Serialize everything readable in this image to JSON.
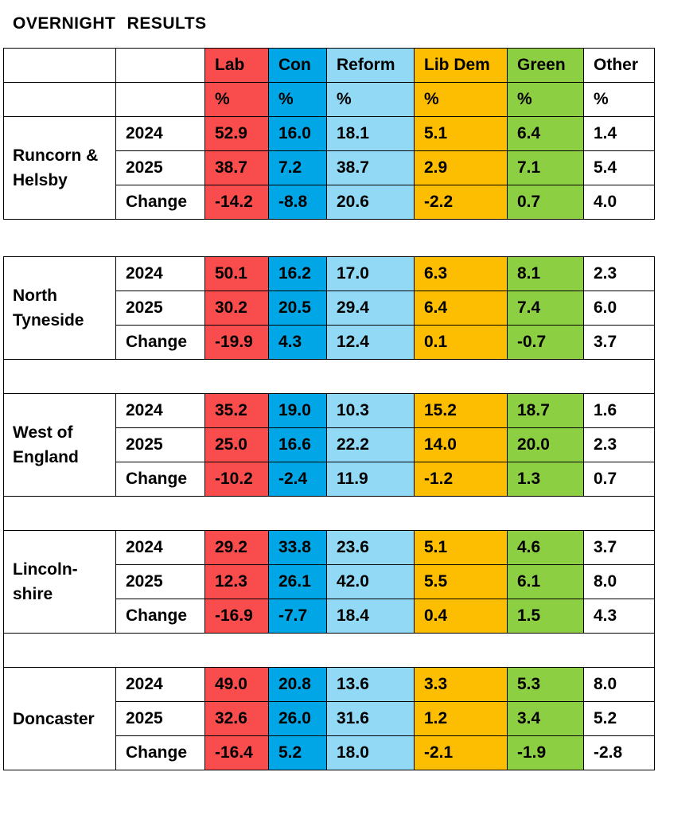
{
  "title": "OVERNIGHT  RESULTS",
  "parties": [
    {
      "name": "Lab",
      "unit": "%",
      "color": "#f94d4d"
    },
    {
      "name": "Con",
      "unit": "%",
      "color": "#00a6e6"
    },
    {
      "name": "Reform",
      "unit": "%",
      "color": "#91d9f5"
    },
    {
      "name": "Lib Dem",
      "unit": "%",
      "color": "#fdbd00"
    },
    {
      "name": "Green",
      "unit": "%",
      "color": "#8dcf43"
    },
    {
      "name": "Other",
      "unit": "%",
      "color": "#ffffff"
    }
  ],
  "regions": [
    {
      "name": "Runcorn & Helsby",
      "rows": [
        {
          "label": "2024",
          "values": [
            "52.9",
            "16.0",
            "18.1",
            "5.1",
            "6.4",
            "1.4"
          ]
        },
        {
          "label": "2025",
          "values": [
            "38.7",
            "7.2",
            "38.7",
            "2.9",
            "7.1",
            "5.4"
          ]
        },
        {
          "label": "Change",
          "values": [
            "-14.2",
            "-8.8",
            "20.6",
            "-2.2",
            "0.7",
            "4.0"
          ]
        }
      ]
    },
    {
      "name": "North Tyneside",
      "rows": [
        {
          "label": "2024",
          "values": [
            "50.1",
            "16.2",
            "17.0",
            "6.3",
            "8.1",
            "2.3"
          ]
        },
        {
          "label": "2025",
          "values": [
            "30.2",
            "20.5",
            "29.4",
            "6.4",
            "7.4",
            "6.0"
          ]
        },
        {
          "label": "Change",
          "values": [
            "-19.9",
            "4.3",
            "12.4",
            "0.1",
            "-0.7",
            "3.7"
          ]
        }
      ]
    },
    {
      "name": "West of England",
      "rows": [
        {
          "label": "2024",
          "values": [
            "35.2",
            "19.0",
            "10.3",
            "15.2",
            "18.7",
            "1.6"
          ]
        },
        {
          "label": "2025",
          "values": [
            "25.0",
            "16.6",
            "22.2",
            "14.0",
            "20.0",
            "2.3"
          ]
        },
        {
          "label": "Change",
          "values": [
            "-10.2",
            "-2.4",
            "11.9",
            "-1.2",
            "1.3",
            "0.7"
          ]
        }
      ]
    },
    {
      "name": "Lincoln-shire",
      "rows": [
        {
          "label": "2024",
          "values": [
            "29.2",
            "33.8",
            "23.6",
            "5.1",
            "4.6",
            "3.7"
          ]
        },
        {
          "label": "2025",
          "values": [
            "12.3",
            "26.1",
            "42.0",
            "5.5",
            "6.1",
            "8.0"
          ]
        },
        {
          "label": "Change",
          "values": [
            "-16.9",
            "-7.7",
            "18.4",
            "0.4",
            "1.5",
            "4.3"
          ]
        }
      ]
    },
    {
      "name": "Doncaster",
      "rows": [
        {
          "label": "2024",
          "values": [
            "49.0",
            "20.8",
            "13.6",
            "3.3",
            "5.3",
            "8.0"
          ]
        },
        {
          "label": "2025",
          "values": [
            "32.6",
            "26.0",
            "31.6",
            "1.2",
            "3.4",
            "5.2"
          ]
        },
        {
          "label": "Change",
          "values": [
            "-16.4",
            "5.2",
            "18.0",
            "-2.1",
            "-1.9",
            "-2.8"
          ]
        }
      ]
    }
  ]
}
